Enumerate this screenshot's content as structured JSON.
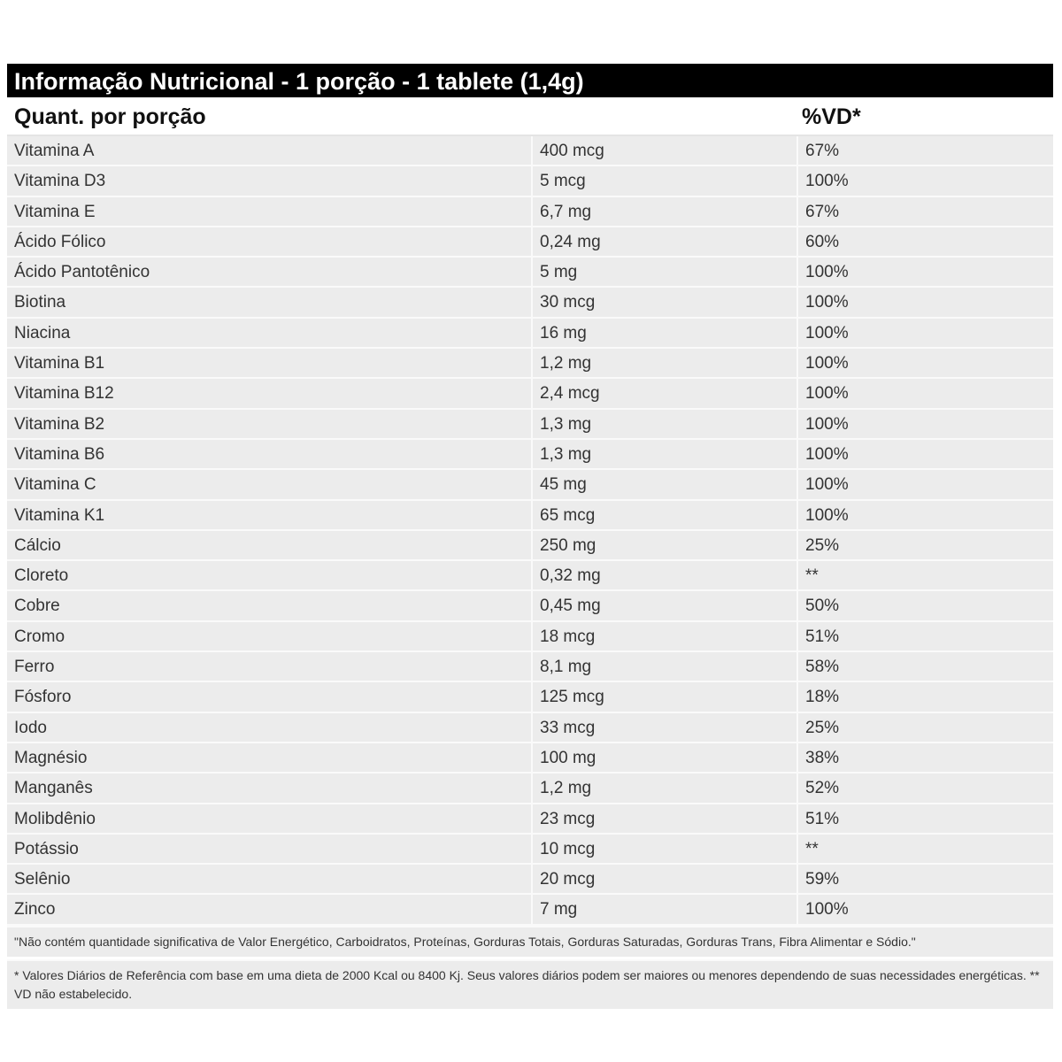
{
  "title": "Informação Nutricional - 1 porção - 1 tablete (1,4g)",
  "header": {
    "quantity": "Quant. por porção",
    "vd": "%VD*"
  },
  "rows": [
    [
      "Vitamina A",
      "400 mcg",
      "67%"
    ],
    [
      "Vitamina D3",
      "5 mcg",
      "100%"
    ],
    [
      "Vitamina E",
      "6,7 mg",
      "67%"
    ],
    [
      "Ácido Fólico",
      "0,24 mg",
      "60%"
    ],
    [
      "Ácido Pantotênico",
      "5 mg",
      "100%"
    ],
    [
      "Biotina",
      "30 mcg",
      "100%"
    ],
    [
      "Niacina",
      "16 mg",
      "100%"
    ],
    [
      "Vitamina B1",
      "1,2 mg",
      "100%"
    ],
    [
      "Vitamina B12",
      "2,4 mcg",
      "100%"
    ],
    [
      "Vitamina B2",
      "1,3 mg",
      "100%"
    ],
    [
      "Vitamina B6",
      "1,3 mg",
      "100%"
    ],
    [
      "Vitamina C",
      "45 mg",
      "100%"
    ],
    [
      "Vitamina K1",
      "65 mcg",
      "100%"
    ],
    [
      "Cálcio",
      "250 mg",
      "25%"
    ],
    [
      "Cloreto",
      "0,32 mg",
      "**"
    ],
    [
      "Cobre",
      "0,45 mg",
      "50%"
    ],
    [
      "Cromo",
      "18 mcg",
      "51%"
    ],
    [
      "Ferro",
      "8,1 mg",
      "58%"
    ],
    [
      "Fósforo",
      "125 mcg",
      "18%"
    ],
    [
      "Iodo",
      "33 mcg",
      "25%"
    ],
    [
      "Magnésio",
      "100 mg",
      "38%"
    ],
    [
      "Manganês",
      "1,2 mg",
      "52%"
    ],
    [
      "Molibdênio",
      "23 mcg",
      "51%"
    ],
    [
      "Potássio",
      "10 mcg",
      "**"
    ],
    [
      "Selênio",
      "20 mcg",
      "59%"
    ],
    [
      "Zinco",
      "7 mg",
      "100%"
    ]
  ],
  "footnotes": [
    "\"Não contém quantidade significativa de Valor Energético, Carboidratos, Proteínas, Gorduras Totais, Gorduras Saturadas, Gorduras Trans, Fibra Alimentar e Sódio.\"",
    "* Valores Diários de Referência com base em uma dieta de 2000 Kcal ou 8400 Kj. Seus valores diários podem ser maiores ou menores dependendo de suas necessidades energéticas. ** VD não estabelecido."
  ]
}
